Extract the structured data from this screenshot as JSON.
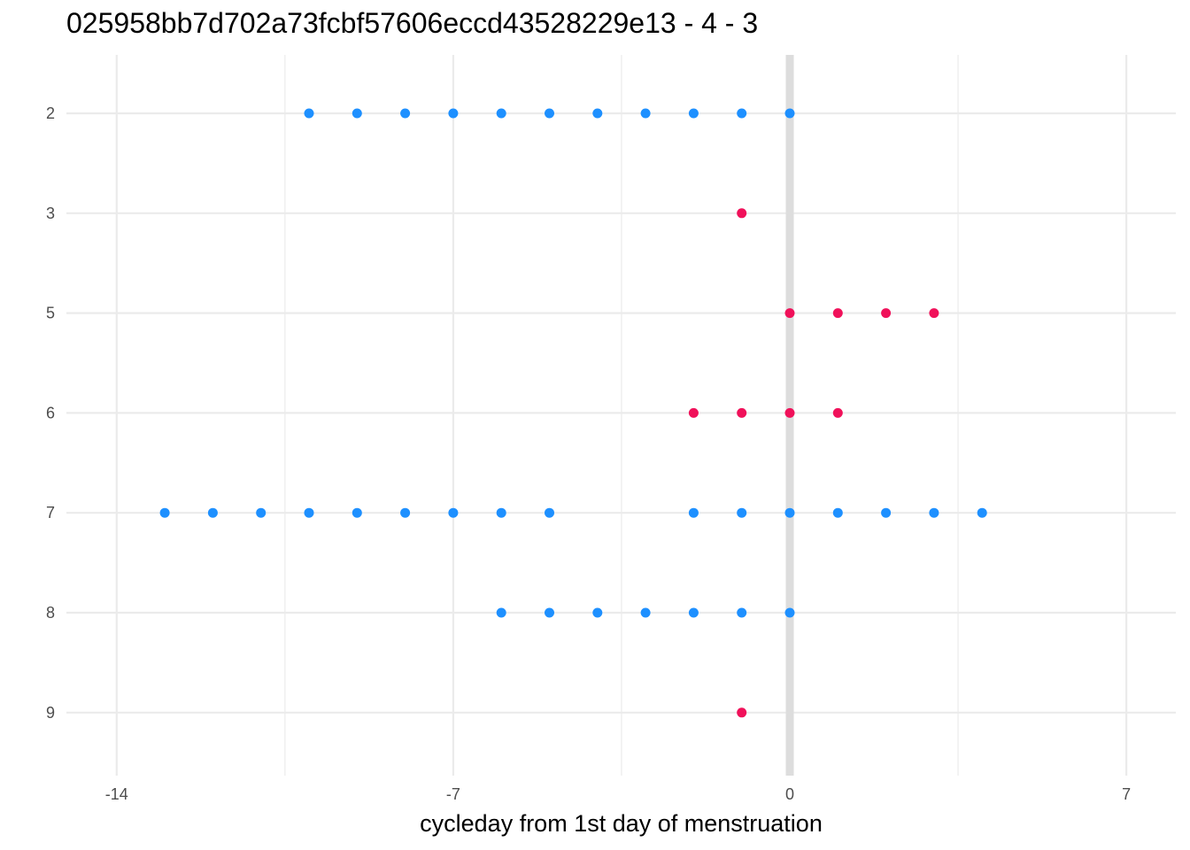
{
  "chart_data": {
    "type": "scatter",
    "title": "025958bb7d702a73fcbf57606eccd43528229e13 - 4 - 3",
    "xlabel": "cycleday from 1st day of menstruation",
    "ylabel": "",
    "xlim": [
      -14.5,
      8
    ],
    "x_ticks": [
      -14,
      -7,
      0,
      7
    ],
    "x_tick_labels": [
      "-14",
      "-7",
      "0",
      "7"
    ],
    "y_categories": [
      "2",
      "3",
      "5",
      "6",
      "7",
      "8",
      "9"
    ],
    "highlight_x": 0,
    "grid": true,
    "colors": {
      "blue": "#1E90FF",
      "red": "#F0115A",
      "highlight": "#DDDDDD",
      "grid": "#EBEBEB"
    },
    "points": [
      {
        "y": "2",
        "color": "blue",
        "x": [
          -10,
          -9,
          -8,
          -7,
          -6,
          -5,
          -4,
          -3,
          -2,
          -1,
          0
        ]
      },
      {
        "y": "3",
        "color": "red",
        "x": [
          -1
        ]
      },
      {
        "y": "5",
        "color": "red",
        "x": [
          0,
          1,
          2,
          3
        ]
      },
      {
        "y": "6",
        "color": "red",
        "x": [
          -2,
          -1,
          0,
          1
        ]
      },
      {
        "y": "7",
        "color": "blue",
        "x": [
          -13,
          -12,
          -11,
          -10,
          -9,
          -8,
          -7,
          -6,
          -5,
          -2,
          -1,
          0,
          1,
          2,
          3,
          4
        ]
      },
      {
        "y": "8",
        "color": "blue",
        "x": [
          -6,
          -5,
          -4,
          -3,
          -2,
          -1,
          0
        ]
      },
      {
        "y": "9",
        "color": "red",
        "x": [
          -1
        ]
      }
    ]
  }
}
